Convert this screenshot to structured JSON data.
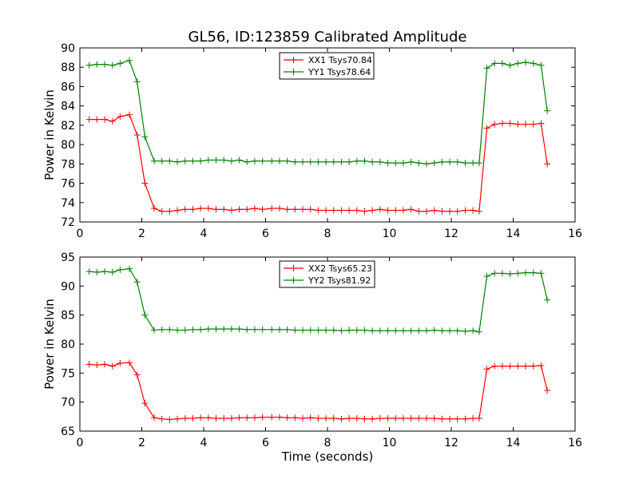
{
  "figure_title": "GL56, ID:123859 Calibrated Amplitude",
  "chart_data": [
    {
      "type": "line",
      "title": "GL56, ID:123859 Calibrated Amplitude",
      "xlabel": "",
      "ylabel": "Power in Kelvin",
      "xlim": [
        0,
        16
      ],
      "ylim": [
        72,
        90
      ],
      "xticks": [
        0,
        2,
        4,
        6,
        8,
        10,
        12,
        14,
        16
      ],
      "yticks": [
        72,
        74,
        76,
        78,
        80,
        82,
        84,
        86,
        88,
        90
      ],
      "grid": false,
      "legend_position": "top-center",
      "x": [
        0.3,
        0.55,
        0.8,
        1.05,
        1.3,
        1.6,
        1.85,
        2.1,
        2.4,
        2.65,
        2.9,
        3.15,
        3.4,
        3.65,
        3.9,
        4.15,
        4.4,
        4.65,
        4.9,
        5.15,
        5.4,
        5.65,
        5.9,
        6.2,
        6.45,
        6.7,
        6.95,
        7.2,
        7.45,
        7.7,
        7.95,
        8.2,
        8.45,
        8.7,
        8.95,
        9.2,
        9.45,
        9.7,
        9.95,
        10.2,
        10.45,
        10.7,
        10.95,
        11.2,
        11.45,
        11.7,
        11.95,
        12.2,
        12.45,
        12.7,
        12.9,
        13.15,
        13.4,
        13.65,
        13.9,
        14.15,
        14.4,
        14.65,
        14.9,
        15.1
      ],
      "series": [
        {
          "name": "XX1 Tsys70.84",
          "color": "#ff0000",
          "values": [
            82.6,
            82.6,
            82.6,
            82.4,
            82.9,
            83.1,
            81.0,
            76.0,
            73.4,
            73.1,
            73.1,
            73.2,
            73.3,
            73.3,
            73.4,
            73.4,
            73.3,
            73.3,
            73.2,
            73.3,
            73.3,
            73.4,
            73.3,
            73.4,
            73.4,
            73.3,
            73.3,
            73.3,
            73.3,
            73.2,
            73.2,
            73.2,
            73.2,
            73.2,
            73.2,
            73.1,
            73.2,
            73.3,
            73.2,
            73.2,
            73.2,
            73.3,
            73.1,
            73.1,
            73.2,
            73.1,
            73.1,
            73.1,
            73.2,
            73.2,
            73.1,
            81.7,
            82.1,
            82.2,
            82.2,
            82.1,
            82.1,
            82.1,
            82.2,
            78.0
          ]
        },
        {
          "name": "YY1 Tsys78.64",
          "color": "#008000",
          "values": [
            88.2,
            88.3,
            88.3,
            88.2,
            88.4,
            88.7,
            86.5,
            80.8,
            78.3,
            78.3,
            78.3,
            78.2,
            78.3,
            78.3,
            78.3,
            78.4,
            78.4,
            78.4,
            78.3,
            78.4,
            78.2,
            78.3,
            78.3,
            78.3,
            78.3,
            78.3,
            78.2,
            78.2,
            78.2,
            78.2,
            78.2,
            78.2,
            78.2,
            78.2,
            78.3,
            78.3,
            78.2,
            78.2,
            78.1,
            78.1,
            78.1,
            78.2,
            78.1,
            78.0,
            78.1,
            78.2,
            78.2,
            78.2,
            78.1,
            78.1,
            78.1,
            87.9,
            88.4,
            88.4,
            88.2,
            88.4,
            88.5,
            88.4,
            88.2,
            83.5
          ]
        }
      ]
    },
    {
      "type": "line",
      "title": "",
      "xlabel": "Time (seconds)",
      "ylabel": "Power in Kelvin",
      "xlim": [
        0,
        16
      ],
      "ylim": [
        65,
        95
      ],
      "xticks": [
        0,
        2,
        4,
        6,
        8,
        10,
        12,
        14,
        16
      ],
      "yticks": [
        65,
        70,
        75,
        80,
        85,
        90,
        95
      ],
      "grid": false,
      "legend_position": "top-center",
      "x": [
        0.3,
        0.55,
        0.8,
        1.05,
        1.3,
        1.6,
        1.85,
        2.1,
        2.4,
        2.65,
        2.9,
        3.15,
        3.4,
        3.65,
        3.9,
        4.15,
        4.4,
        4.65,
        4.9,
        5.15,
        5.4,
        5.65,
        5.9,
        6.2,
        6.45,
        6.7,
        6.95,
        7.2,
        7.45,
        7.7,
        7.95,
        8.2,
        8.45,
        8.7,
        8.95,
        9.2,
        9.45,
        9.7,
        9.95,
        10.2,
        10.45,
        10.7,
        10.95,
        11.2,
        11.45,
        11.7,
        11.95,
        12.2,
        12.45,
        12.7,
        12.9,
        13.15,
        13.4,
        13.65,
        13.9,
        14.15,
        14.4,
        14.65,
        14.9,
        15.1
      ],
      "series": [
        {
          "name": "XX2 Tsys65.23",
          "color": "#ff0000",
          "values": [
            76.5,
            76.4,
            76.5,
            76.2,
            76.7,
            76.8,
            74.7,
            69.8,
            67.3,
            67.1,
            67.0,
            67.1,
            67.2,
            67.2,
            67.3,
            67.3,
            67.2,
            67.2,
            67.2,
            67.3,
            67.3,
            67.3,
            67.4,
            67.4,
            67.4,
            67.3,
            67.3,
            67.2,
            67.3,
            67.2,
            67.2,
            67.2,
            67.1,
            67.2,
            67.2,
            67.1,
            67.1,
            67.2,
            67.2,
            67.2,
            67.2,
            67.2,
            67.2,
            67.2,
            67.2,
            67.1,
            67.1,
            67.1,
            67.1,
            67.2,
            67.2,
            75.7,
            76.2,
            76.2,
            76.2,
            76.2,
            76.2,
            76.2,
            76.3,
            72.0
          ]
        },
        {
          "name": "YY2 Tsys81.92",
          "color": "#008000",
          "values": [
            92.5,
            92.4,
            92.5,
            92.4,
            92.8,
            93.0,
            90.7,
            85.0,
            82.4,
            82.5,
            82.5,
            82.4,
            82.4,
            82.5,
            82.5,
            82.6,
            82.6,
            82.6,
            82.6,
            82.6,
            82.5,
            82.5,
            82.5,
            82.5,
            82.5,
            82.5,
            82.4,
            82.4,
            82.4,
            82.4,
            82.4,
            82.4,
            82.3,
            82.4,
            82.4,
            82.4,
            82.3,
            82.3,
            82.3,
            82.3,
            82.3,
            82.3,
            82.3,
            82.3,
            82.4,
            82.3,
            82.3,
            82.3,
            82.2,
            82.3,
            82.1,
            91.7,
            92.2,
            92.2,
            92.1,
            92.2,
            92.3,
            92.3,
            92.2,
            87.6
          ]
        }
      ]
    }
  ]
}
